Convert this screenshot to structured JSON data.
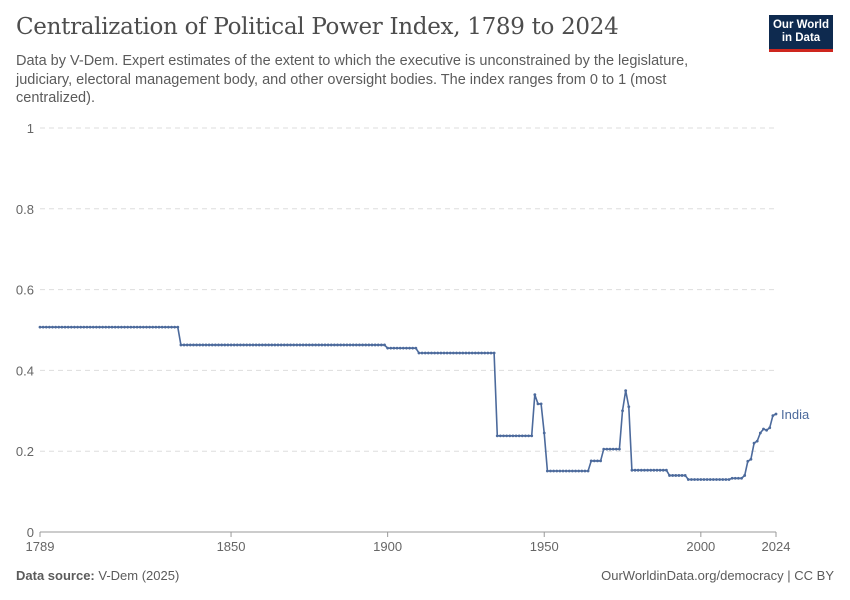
{
  "header": {
    "title": "Centralization of Political Power Index, 1789 to 2024",
    "subtitle": "Data by V-Dem. Expert estimates of the extent to which the executive is unconstrained by the legislature, judiciary, electoral management body, and other oversight bodies. The index ranges from 0 to 1 (most centralized).",
    "logo_line1": "Our World",
    "logo_line2": "in Data"
  },
  "footer": {
    "source_label": "Data source:",
    "source": "V-Dem (2025)",
    "link": "OurWorldinData.org/democracy | CC BY"
  },
  "colors": {
    "series": "#4c6a9c",
    "grid": "#dddddd"
  },
  "chart_data": {
    "type": "line",
    "title": "Centralization of Political Power Index, 1789 to 2024",
    "xlim": [
      1789,
      2024
    ],
    "ylim": [
      0,
      1
    ],
    "x_ticks": [
      "1789",
      "1850",
      "1900",
      "1950",
      "2000",
      "2024"
    ],
    "y_ticks": [
      "0",
      "0.2",
      "0.4",
      "0.6",
      "0.8",
      "1"
    ],
    "grid": "horizontal dashed",
    "series": [
      {
        "name": "India",
        "runs": [
          [
            1789,
            1833,
            0.507
          ],
          [
            1834,
            1899,
            0.463
          ],
          [
            1900,
            1909,
            0.455
          ],
          [
            1910,
            1934,
            0.443
          ],
          [
            1935,
            1946,
            0.238
          ],
          [
            1947,
            1947,
            0.34
          ],
          [
            1948,
            1949,
            0.317
          ],
          [
            1950,
            1950,
            0.245
          ],
          [
            1951,
            1964,
            0.151
          ],
          [
            1965,
            1968,
            0.176
          ],
          [
            1969,
            1974,
            0.205
          ],
          [
            1975,
            1975,
            0.3
          ],
          [
            1976,
            1976,
            0.35
          ],
          [
            1977,
            1977,
            0.31
          ],
          [
            1978,
            1989,
            0.153
          ],
          [
            1990,
            1995,
            0.14
          ],
          [
            1996,
            2009,
            0.13
          ],
          [
            2010,
            2013,
            0.133
          ],
          [
            2014,
            2014,
            0.14
          ],
          [
            2015,
            2015,
            0.175
          ],
          [
            2016,
            2016,
            0.18
          ],
          [
            2017,
            2017,
            0.22
          ],
          [
            2018,
            2018,
            0.225
          ],
          [
            2019,
            2019,
            0.245
          ],
          [
            2020,
            2020,
            0.255
          ],
          [
            2021,
            2021,
            0.252
          ],
          [
            2022,
            2022,
            0.258
          ],
          [
            2023,
            2023,
            0.288
          ],
          [
            2024,
            2024,
            0.292
          ]
        ]
      }
    ]
  }
}
